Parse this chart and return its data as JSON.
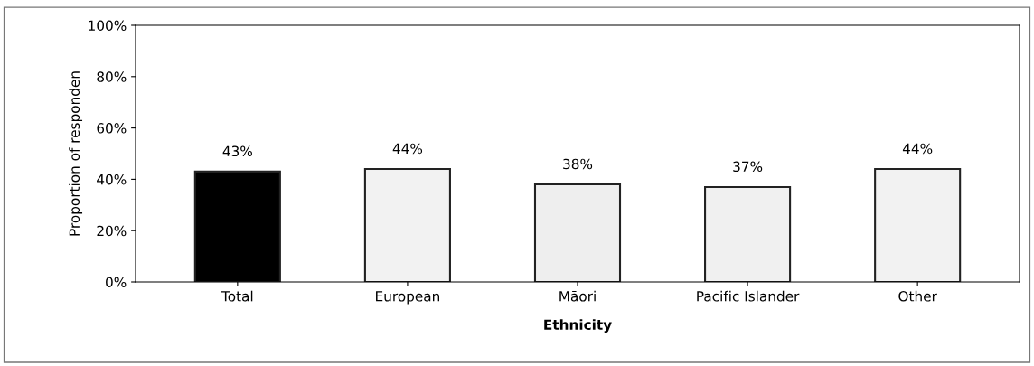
{
  "chart_data": {
    "type": "bar",
    "xlabel": "Ethnicity",
    "ylabel": "Proportion of responden",
    "categories": [
      "Total",
      "European",
      "Māori",
      "Pacific Islander",
      "Other"
    ],
    "values": [
      43,
      44,
      38,
      37,
      44
    ],
    "colors": [
      "#000000",
      "#f2f2f2",
      "#eeeeee",
      "#f0f0f0",
      "#f2f2f2"
    ],
    "value_labels": [
      "43%",
      "44%",
      "38%",
      "37%",
      "44%"
    ],
    "ylim": [
      0,
      100
    ],
    "yticks": [
      {
        "value": 0,
        "label": "0%"
      },
      {
        "value": 20,
        "label": "20%"
      },
      {
        "value": 40,
        "label": "40%"
      },
      {
        "value": 60,
        "label": "60%"
      },
      {
        "value": 80,
        "label": "80%"
      },
      {
        "value": 100,
        "label": "100%"
      }
    ],
    "grid": false,
    "legend": false
  }
}
